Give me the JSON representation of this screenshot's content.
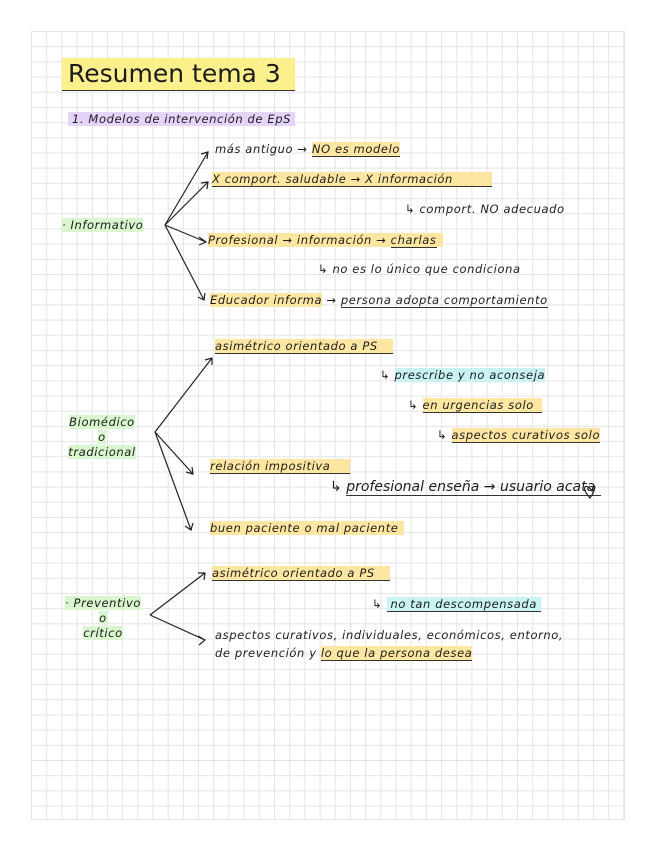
{
  "title": "Resumen tema 3",
  "section": "1. Modelos de intervención de EpS",
  "colors": {
    "title_highlight": "#fcf08c",
    "highlight": "#fde6a2",
    "model_highlight": "#d9f6cf",
    "section_highlight": "#e5d3f8",
    "note_highlight": "#c9f2f2"
  },
  "informativo": {
    "label": "Informativo",
    "items": [
      {
        "a": "más antiguo →",
        "b": "NO es modelo"
      },
      {
        "a": "X comport. saludable → X información"
      },
      {
        "a": "↳ comport. NO adecuado"
      },
      {
        "a": "Profesional → información →",
        "b": "charlas"
      },
      {
        "a": "↳ no es lo único que condiciona"
      },
      {
        "a": "Educador informa",
        "arrow": "→",
        "b": "persona adopta comportamiento"
      }
    ]
  },
  "biomedico": {
    "label_lines": [
      "Biomédico",
      "o",
      "tradicional"
    ],
    "items": [
      {
        "a": "asimétrico orientado a PS"
      },
      {
        "arrow": "↳",
        "a": "prescribe y no aconseja"
      },
      {
        "arrow": "↳",
        "a": "en urgencias solo"
      },
      {
        "arrow": "↳",
        "a": "aspectos curativos solo"
      },
      {
        "a": "relación impositiva"
      },
      {
        "arrow": "↳",
        "a": "profesional enseña → usuario acata",
        "icon": "heart-doodle"
      },
      {
        "a": "buen paciente o mal paciente"
      }
    ]
  },
  "preventivo": {
    "label_lines": [
      "Preventivo",
      "o",
      "crítico"
    ],
    "items": [
      {
        "a": "asimétrico orientado a PS"
      },
      {
        "arrow": "↳",
        "a": "no tan descompensada"
      },
      {
        "a": "aspectos curativos, individuales, económicos, entorno,"
      },
      {
        "a": "de prevención y",
        "b": "lo que la persona desea"
      }
    ]
  }
}
